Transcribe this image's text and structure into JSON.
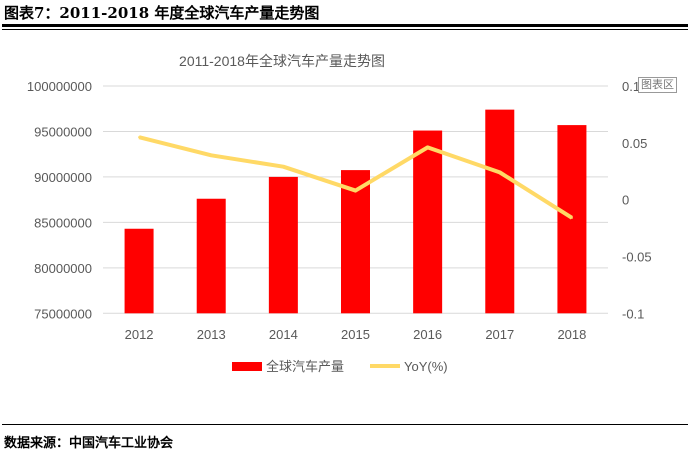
{
  "heading": "图表7：2011-2018 年度全球汽车产量走势图",
  "source": "数据来源：中国汽车工业协会",
  "tooltip": "图表区",
  "chart_data": {
    "type": "bar+line",
    "title": "2011-2018年全球汽车产量走势图",
    "categories": [
      "2012",
      "2013",
      "2014",
      "2015",
      "2016",
      "2017",
      "2018"
    ],
    "series": [
      {
        "name": "全球汽车产量",
        "type": "bar",
        "axis": "left",
        "color": "#FF0000",
        "values": [
          84300000,
          87600000,
          90000000,
          90750000,
          95100000,
          97400000,
          95700000
        ]
      },
      {
        "name": "YoY(%)",
        "type": "line",
        "axis": "right",
        "color": "#FFD966",
        "values": [
          0.055,
          0.039,
          0.029,
          0.008,
          0.046,
          0.024,
          -0.016
        ]
      }
    ],
    "left_axis": {
      "ylim": [
        75000000,
        100000000
      ],
      "ticks": [
        "75000000",
        "80000000",
        "85000000",
        "90000000",
        "95000000",
        "100000000"
      ]
    },
    "right_axis": {
      "ylim": [
        -0.1,
        0.1
      ],
      "ticks": [
        "-0.1",
        "-0.05",
        "0",
        "0.05",
        "0.1"
      ]
    },
    "grid": true,
    "legend": "bottom"
  }
}
